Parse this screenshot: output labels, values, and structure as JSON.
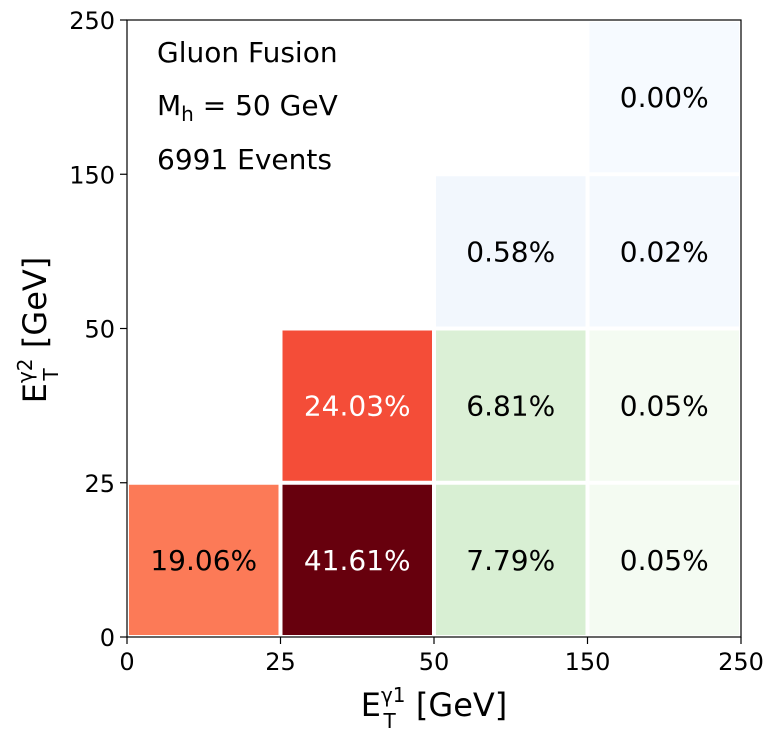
{
  "chart_data": {
    "type": "heatmap",
    "annotations": {
      "process": "Gluon Fusion",
      "mass_symbol": "M",
      "mass_sub": "h",
      "mass_value": " = 50 GeV",
      "events": "6991 Events"
    },
    "xlabel": {
      "main": "E",
      "sup": "γ1",
      "sub": "T",
      "unit": " [GeV]"
    },
    "ylabel": {
      "main": "E",
      "sup": "γ2",
      "sub": "T",
      "unit": " [GeV]"
    },
    "x_bin_edges": [
      "0",
      "25",
      "50",
      "150",
      "250"
    ],
    "y_bin_edges": [
      "0",
      "25",
      "50",
      "150",
      "250"
    ],
    "cells": [
      {
        "x_bin": 0,
        "y_bin": 0,
        "value": 19.06,
        "label": "19.06%",
        "color": "#fc7a57",
        "text_color": "#000000"
      },
      {
        "x_bin": 1,
        "y_bin": 0,
        "value": 41.61,
        "label": "41.61%",
        "color": "#67000d",
        "text_color": "#ffffff"
      },
      {
        "x_bin": 2,
        "y_bin": 0,
        "value": 7.79,
        "label": "7.79%",
        "color": "#d8efd3",
        "text_color": "#000000"
      },
      {
        "x_bin": 3,
        "y_bin": 0,
        "value": 0.05,
        "label": "0.05%",
        "color": "#f4fbf2",
        "text_color": "#000000"
      },
      {
        "x_bin": 1,
        "y_bin": 1,
        "value": 24.03,
        "label": "24.03%",
        "color": "#f44d38",
        "text_color": "#ffffff"
      },
      {
        "x_bin": 2,
        "y_bin": 1,
        "value": 6.81,
        "label": "6.81%",
        "color": "#dbf0d6",
        "text_color": "#000000"
      },
      {
        "x_bin": 3,
        "y_bin": 1,
        "value": 0.05,
        "label": "0.05%",
        "color": "#f4fbf2",
        "text_color": "#000000"
      },
      {
        "x_bin": 2,
        "y_bin": 2,
        "value": 0.58,
        "label": "0.58%",
        "color": "#f2f7fd",
        "text_color": "#000000"
      },
      {
        "x_bin": 3,
        "y_bin": 2,
        "value": 0.02,
        "label": "0.02%",
        "color": "#f4f9fe",
        "text_color": "#000000"
      },
      {
        "x_bin": 3,
        "y_bin": 3,
        "value": 0.0,
        "label": "0.00%",
        "color": "#f6faff",
        "text_color": "#000000"
      }
    ],
    "colormaps": [
      "Reds",
      "Greens",
      "Blues"
    ],
    "grid": false,
    "legend": "none"
  }
}
